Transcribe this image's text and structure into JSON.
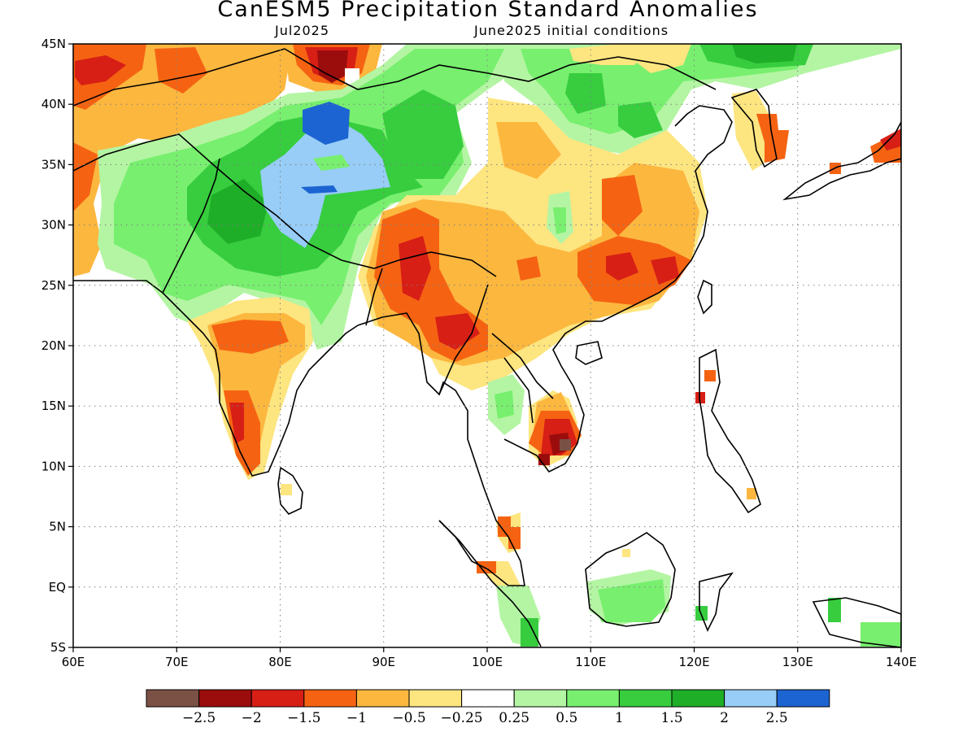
{
  "map": {
    "title": "CanESM5 Precipitation Standard Anomalies",
    "valid_month": "Jul2025",
    "init_conditions": "June2025 initial conditions",
    "extent": {
      "lon_min": 60,
      "lon_max": 140,
      "lat_min": -5,
      "lat_max": 45
    },
    "lat_labels": [
      {
        "lat": 45,
        "label": "45N"
      },
      {
        "lat": 40,
        "label": "40N"
      },
      {
        "lat": 35,
        "label": "35N"
      },
      {
        "lat": 30,
        "label": "30N"
      },
      {
        "lat": 25,
        "label": "25N"
      },
      {
        "lat": 20,
        "label": "20N"
      },
      {
        "lat": 15,
        "label": "15N"
      },
      {
        "lat": 10,
        "label": "10N"
      },
      {
        "lat": 5,
        "label": "5N"
      },
      {
        "lat": 0,
        "label": "EQ"
      },
      {
        "lat": -5,
        "label": "5S"
      }
    ],
    "lon_labels": [
      {
        "lon": 60,
        "label": "60E"
      },
      {
        "lon": 70,
        "label": "70E"
      },
      {
        "lon": 80,
        "label": "80E"
      },
      {
        "lon": 90,
        "label": "90E"
      },
      {
        "lon": 100,
        "label": "100E"
      },
      {
        "lon": 110,
        "label": "110E"
      },
      {
        "lon": 120,
        "label": "120E"
      },
      {
        "lon": 130,
        "label": "130E"
      },
      {
        "lon": 140,
        "label": "140E"
      }
    ],
    "colors": {
      "c_m3": "#7b5146",
      "c_m25": "#9b0d0d",
      "c_m2": "#d71f16",
      "c_m15": "#f56312",
      "c_m1": "#fcb73f",
      "c_m05": "#fde580",
      "c_0": "#ffffff",
      "c_p025": "#b4f5a3",
      "c_p05": "#78ef6f",
      "c_p1": "#37cd3f",
      "c_p15": "#1fae28",
      "c_p2": "#97cdf6",
      "c_p25": "#1c64d1"
    },
    "colorbar": {
      "colors": [
        "#7b5146",
        "#9b0d0d",
        "#d71f16",
        "#f56312",
        "#fcb73f",
        "#fde580",
        "#ffffff",
        "#b4f5a3",
        "#78ef6f",
        "#37cd3f",
        "#1fae28",
        "#97cdf6",
        "#1c64d1"
      ],
      "labels": [
        "−2.5",
        "−2",
        "−1.5",
        "−1",
        "−0.5",
        "−0.25",
        "0.25",
        "0.5",
        "1",
        "1.5",
        "2",
        "2.5"
      ]
    }
  }
}
